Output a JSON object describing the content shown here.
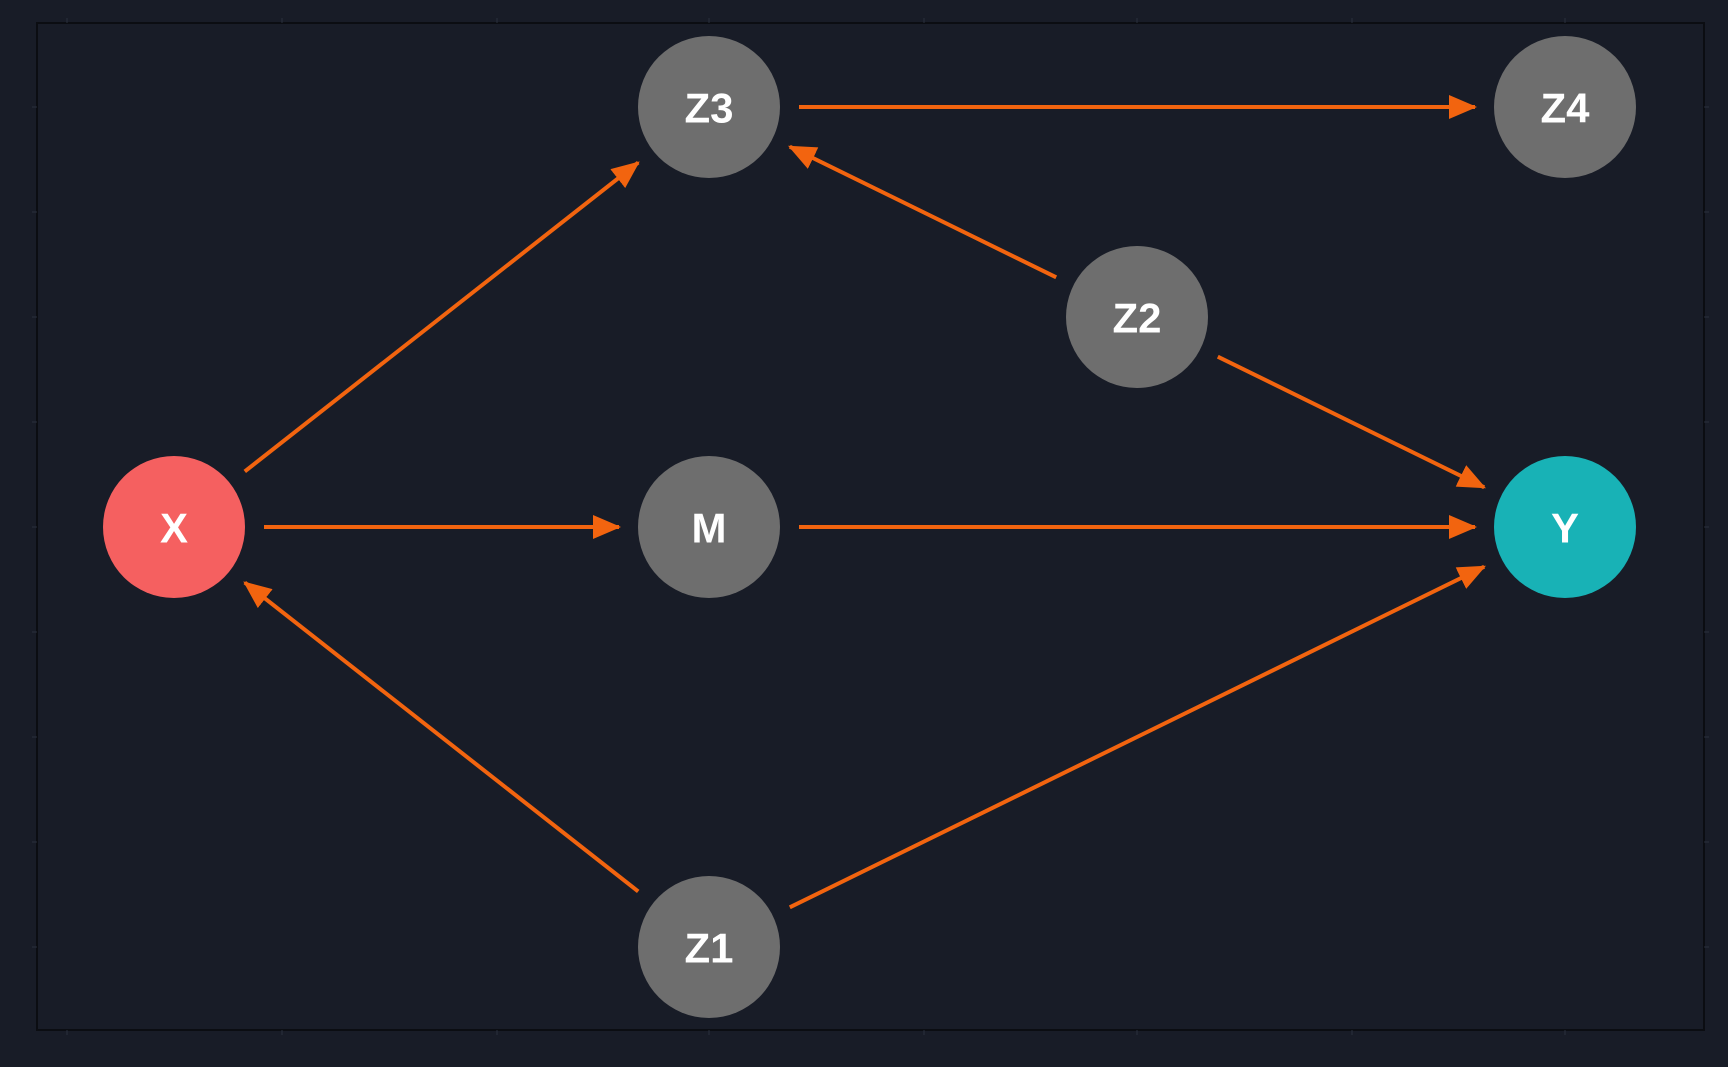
{
  "diagram": {
    "type": "directed-acyclic-graph",
    "colors": {
      "background": "#181c27",
      "border": "#0b0d12",
      "tick": "#2a2f3c",
      "edge": "#f2640f",
      "exposure": "#f56060",
      "outcome": "#18b2b6",
      "other": "#6e6e6e",
      "label": "#ffffff"
    },
    "nodes": [
      {
        "id": "X",
        "label": "X",
        "role": "exposure"
      },
      {
        "id": "M",
        "label": "M",
        "role": "other"
      },
      {
        "id": "Y",
        "label": "Y",
        "role": "outcome"
      },
      {
        "id": "Z1",
        "label": "Z1",
        "role": "other"
      },
      {
        "id": "Z2",
        "label": "Z2",
        "role": "other"
      },
      {
        "id": "Z3",
        "label": "Z3",
        "role": "other"
      },
      {
        "id": "Z4",
        "label": "Z4",
        "role": "other"
      }
    ],
    "edges": [
      {
        "from": "X",
        "to": "M"
      },
      {
        "from": "M",
        "to": "Y"
      },
      {
        "from": "X",
        "to": "Z3"
      },
      {
        "from": "Z3",
        "to": "Z4"
      },
      {
        "from": "Z2",
        "to": "Z3"
      },
      {
        "from": "Z2",
        "to": "Y"
      },
      {
        "from": "Z1",
        "to": "X"
      },
      {
        "from": "Z1",
        "to": "Y"
      }
    ]
  }
}
